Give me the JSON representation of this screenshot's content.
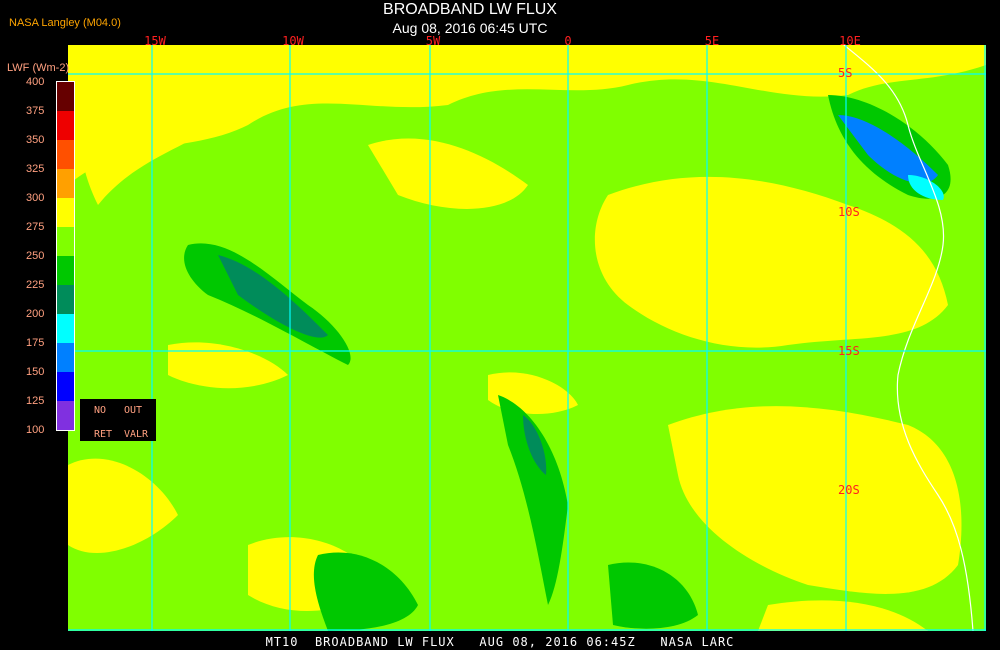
{
  "header": {
    "title": "BROADBAND LW FLUX",
    "subtitle": "Aug 08, 2016 06:45 UTC",
    "org": "NASA Langley (M04.0)"
  },
  "map": {
    "longitude_labels": [
      "15W",
      "10W",
      "5W",
      "0",
      "5E",
      "10E"
    ],
    "latitude_labels": [
      "5S",
      "10S",
      "15S",
      "20S"
    ],
    "colors": {
      "background": "#000000",
      "gridline": "#00ffff",
      "coastline": "#ffffff",
      "label": "#ff2020"
    }
  },
  "colorbar": {
    "label": "LWF (Wm-2)",
    "ticks": [
      "400",
      "375",
      "350",
      "325",
      "300",
      "275",
      "250",
      "225",
      "200",
      "175",
      "150",
      "125",
      "100"
    ],
    "colors": [
      "#660000",
      "#ee0000",
      "#ff5000",
      "#ffa000",
      "#ffff00",
      "#80ff00",
      "#00c800",
      "#008c5a",
      "#00ffff",
      "#0080ff",
      "#0000ff",
      "#8030e0"
    ],
    "missing": {
      "no": "NO",
      "ret": "RET",
      "out": "OUT",
      "valr": "VALR"
    }
  },
  "footer": {
    "text": "MT10  BROADBAND LW FLUX   AUG 08, 2016 06:45Z   NASA LARC"
  }
}
